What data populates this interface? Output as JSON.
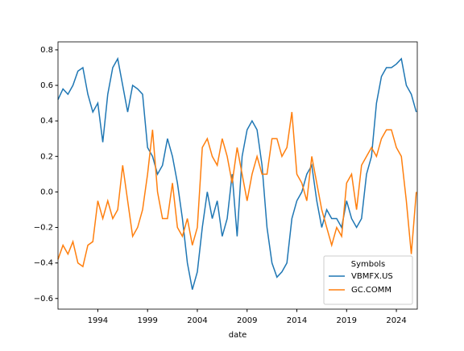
{
  "chart_data": {
    "type": "line",
    "xlabel": "date",
    "x": [
      1990,
      1990.5,
      1991,
      1991.5,
      1992,
      1992.5,
      1993,
      1993.5,
      1994,
      1994.5,
      1995,
      1995.5,
      1996,
      1996.5,
      1997,
      1997.5,
      1998,
      1998.5,
      1999,
      1999.5,
      2000,
      2000.5,
      2001,
      2001.5,
      2002,
      2002.5,
      2003,
      2003.5,
      2004,
      2004.5,
      2005,
      2005.5,
      2006,
      2006.5,
      2007,
      2007.5,
      2008,
      2008.5,
      2009,
      2009.5,
      2010,
      2010.5,
      2011,
      2011.5,
      2012,
      2012.5,
      2013,
      2013.5,
      2014,
      2014.5,
      2015,
      2015.5,
      2016,
      2016.5,
      2017,
      2017.5,
      2018,
      2018.5,
      2019,
      2019.5,
      2020,
      2020.5,
      2021,
      2021.5,
      2022,
      2022.5,
      2023,
      2023.5,
      2024,
      2024.5,
      2025,
      2025.5,
      2026
    ],
    "series": [
      {
        "name": "VBMFX.US",
        "color": "#1f77b4",
        "values": [
          0.52,
          0.58,
          0.55,
          0.6,
          0.68,
          0.7,
          0.55,
          0.45,
          0.5,
          0.28,
          0.55,
          0.7,
          0.75,
          0.6,
          0.45,
          0.6,
          0.58,
          0.55,
          0.25,
          0.2,
          0.1,
          0.15,
          0.3,
          0.2,
          0.05,
          -0.15,
          -0.4,
          -0.55,
          -0.45,
          -0.2,
          0.0,
          -0.15,
          -0.05,
          -0.25,
          -0.15,
          0.1,
          -0.25,
          0.2,
          0.35,
          0.4,
          0.35,
          0.15,
          -0.2,
          -0.4,
          -0.48,
          -0.45,
          -0.4,
          -0.15,
          -0.05,
          0.0,
          0.1,
          0.15,
          -0.05,
          -0.2,
          -0.1,
          -0.15,
          -0.15,
          -0.2,
          -0.05,
          -0.15,
          -0.2,
          -0.15,
          0.1,
          0.2,
          0.5,
          0.65,
          0.7,
          0.7,
          0.72,
          0.75,
          0.6,
          0.55,
          0.45
        ]
      },
      {
        "name": "GC.COMM",
        "color": "#ff7f0e",
        "values": [
          -0.38,
          -0.3,
          -0.35,
          -0.28,
          -0.4,
          -0.42,
          -0.3,
          -0.28,
          -0.05,
          -0.15,
          -0.05,
          -0.15,
          -0.1,
          0.15,
          -0.05,
          -0.25,
          -0.2,
          -0.1,
          0.1,
          0.35,
          0.0,
          -0.15,
          -0.15,
          0.05,
          -0.2,
          -0.25,
          -0.15,
          -0.3,
          -0.2,
          0.25,
          0.3,
          0.2,
          0.15,
          0.3,
          0.2,
          0.05,
          0.25,
          0.1,
          -0.05,
          0.1,
          0.2,
          0.1,
          0.1,
          0.3,
          0.3,
          0.2,
          0.25,
          0.45,
          0.1,
          0.05,
          -0.05,
          0.2,
          0.05,
          -0.1,
          -0.2,
          -0.3,
          -0.2,
          -0.25,
          0.05,
          0.1,
          -0.1,
          0.15,
          0.2,
          0.25,
          0.2,
          0.3,
          0.35,
          0.35,
          0.25,
          0.2,
          -0.05,
          -0.35,
          0.0
        ]
      }
    ],
    "xlim": [
      1990,
      2026.1
    ],
    "ylim": [
      -0.66,
      0.845
    ],
    "xticks": [
      1994,
      1999,
      2004,
      2009,
      2014,
      2019,
      2024
    ],
    "yticks": [
      {
        "value": -0.6,
        "label": "−0.6"
      },
      {
        "value": -0.4,
        "label": "−0.4"
      },
      {
        "value": -0.2,
        "label": "−0.2"
      },
      {
        "value": 0,
        "label": "0.0"
      },
      0.2,
      0.4,
      0.6,
      0.8
    ],
    "legend": {
      "title": "Symbols",
      "position": "lower right"
    }
  }
}
